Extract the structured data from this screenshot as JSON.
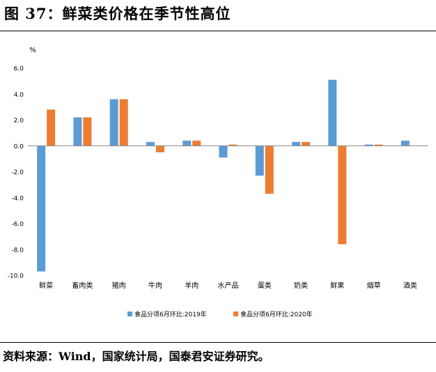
{
  "title": "图 37：鲜菜类价格在季节性高位",
  "source": "资料来源：Wind，国家统计局，国泰君安证券研究。",
  "chart_data": {
    "type": "bar",
    "unit_label": "%",
    "categories": [
      "鲜菜",
      "畜肉类",
      "猪肉",
      "牛肉",
      "羊肉",
      "水产品",
      "蛋类",
      "奶类",
      "鲜果",
      "烟草",
      "酒类"
    ],
    "series": [
      {
        "name": "食品分项6月环比:2019年",
        "color": "#5B9BD5",
        "values": [
          -9.7,
          2.2,
          3.6,
          0.3,
          0.4,
          -0.9,
          -2.3,
          0.3,
          5.1,
          0.1,
          0.4
        ]
      },
      {
        "name": "食品分项6月环比:2020年",
        "color": "#ED7D31",
        "values": [
          2.8,
          2.2,
          3.6,
          -0.5,
          0.4,
          0.1,
          -3.7,
          0.3,
          -7.6,
          0.1,
          0.0
        ]
      }
    ],
    "ylim": [
      -10,
      6
    ],
    "yticks": [
      "6.0",
      "4.0",
      "2.0",
      "0.0",
      "-2.0",
      "-4.0",
      "-6.0",
      "-8.0",
      "-10.0"
    ],
    "ytick_values": [
      6,
      4,
      2,
      0,
      -2,
      -4,
      -6,
      -8,
      -10
    ],
    "legend_position": "bottom",
    "grid": false
  }
}
